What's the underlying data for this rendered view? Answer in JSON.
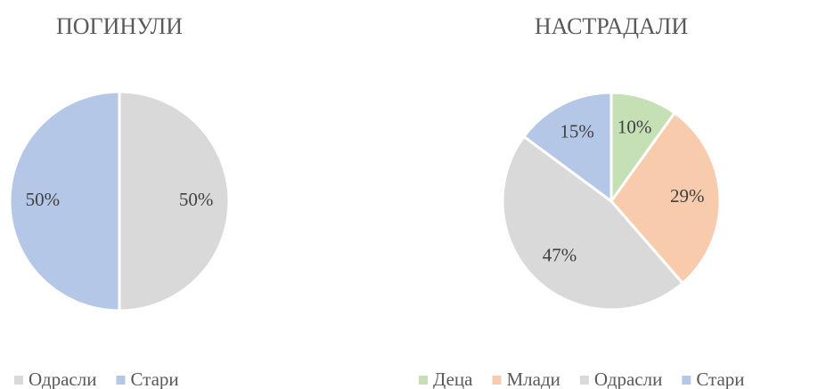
{
  "chart_data": [
    {
      "type": "pie",
      "title": "ПОГИНУЛИ",
      "categories": [
        "Одрасли",
        "Стари"
      ],
      "values": [
        50,
        50
      ],
      "value_labels": [
        "50%",
        "50%"
      ],
      "colors": [
        "#d9d9d9",
        "#b4c7e7"
      ],
      "legend": "bottom"
    },
    {
      "type": "pie",
      "title": "НАСТРАДАЛИ",
      "categories": [
        "Деца",
        "Млади",
        "Одрасли",
        "Стари"
      ],
      "values": [
        10,
        29,
        47,
        15
      ],
      "value_labels": [
        "10%",
        "29%",
        "47%",
        "15%"
      ],
      "colors": [
        "#c5e0b4",
        "#f8cbad",
        "#d9d9d9",
        "#b4c7e7"
      ],
      "legend": "bottom"
    }
  ]
}
